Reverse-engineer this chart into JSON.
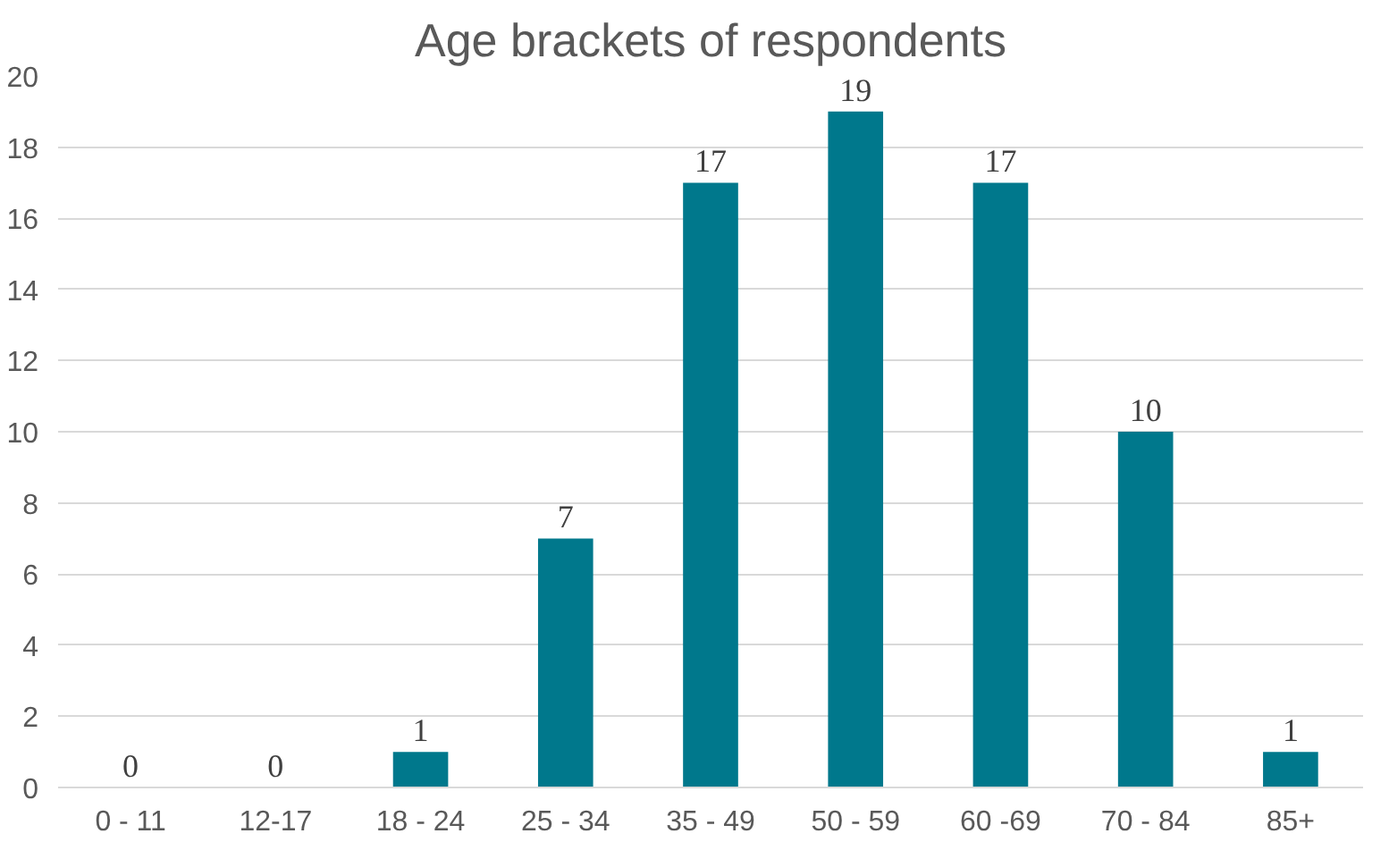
{
  "chart_data": {
    "type": "bar",
    "title": "Age brackets of respondents",
    "categories": [
      "0 - 11",
      "12-17",
      "18 - 24",
      "25 - 34",
      "35 - 49",
      "50 - 59",
      "60 -69",
      "70 - 84",
      "85+"
    ],
    "values": [
      0,
      0,
      1,
      7,
      17,
      19,
      17,
      10,
      1
    ],
    "color": "#00788c",
    "ylim": [
      0,
      20
    ],
    "yticks": [
      0,
      2,
      4,
      6,
      8,
      10,
      12,
      14,
      16,
      18,
      20
    ],
    "grid": "y",
    "data_labels": true
  }
}
